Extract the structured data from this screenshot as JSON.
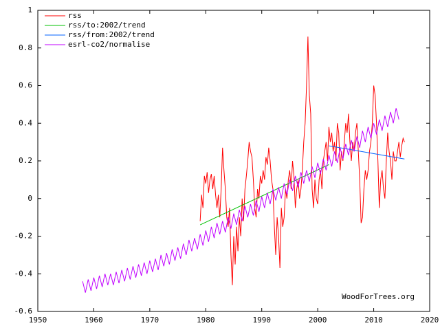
{
  "chart_data": {
    "type": "line",
    "annotation": "WoodForTrees.org",
    "xlim": [
      1950,
      2020
    ],
    "xticks": [
      1950,
      1960,
      1970,
      1980,
      1990,
      2000,
      2010,
      2020
    ],
    "ylim": [
      -0.6,
      1
    ],
    "yticks": [
      -0.6,
      -0.4,
      -0.2,
      0,
      0.2,
      0.4,
      0.6,
      0.8,
      1
    ],
    "grid": false,
    "legend": "top-left",
    "series": [
      {
        "name": "rss",
        "color": "#ff0000",
        "x": [
          1979,
          1979.25,
          1979.5,
          1979.75,
          1980,
          1980.25,
          1980.5,
          1980.75,
          1981,
          1981.25,
          1981.5,
          1981.75,
          1982,
          1982.25,
          1982.5,
          1982.75,
          1983,
          1983.25,
          1983.5,
          1983.75,
          1984,
          1984.25,
          1984.5,
          1984.75,
          1985,
          1985.25,
          1985.5,
          1985.75,
          1986,
          1986.25,
          1986.5,
          1986.75,
          1987,
          1987.25,
          1987.5,
          1987.75,
          1988,
          1988.25,
          1988.5,
          1988.75,
          1989,
          1989.25,
          1989.5,
          1989.75,
          1990,
          1990.25,
          1990.5,
          1990.75,
          1991,
          1991.25,
          1991.5,
          1991.75,
          1992,
          1992.25,
          1992.5,
          1992.75,
          1993,
          1993.25,
          1993.5,
          1993.75,
          1994,
          1994.25,
          1994.5,
          1994.75,
          1995,
          1995.25,
          1995.5,
          1995.75,
          1996,
          1996.25,
          1996.5,
          1996.75,
          1997,
          1997.25,
          1997.5,
          1997.75,
          1998,
          1998.25,
          1998.5,
          1998.75,
          1999,
          1999.25,
          1999.5,
          1999.75,
          2000,
          2000.25,
          2000.5,
          2000.75,
          2001,
          2001.25,
          2001.5,
          2001.75,
          2002,
          2002.25,
          2002.5,
          2002.75,
          2003,
          2003.25,
          2003.5,
          2003.75,
          2004,
          2004.25,
          2004.5,
          2004.75,
          2005,
          2005.25,
          2005.5,
          2005.75,
          2006,
          2006.25,
          2006.5,
          2006.75,
          2007,
          2007.25,
          2007.5,
          2007.75,
          2008,
          2008.25,
          2008.5,
          2008.75,
          2009,
          2009.25,
          2009.5,
          2009.75,
          2010,
          2010.25,
          2010.5,
          2010.75,
          2011,
          2011.25,
          2011.5,
          2011.75,
          2012,
          2012.25,
          2012.5,
          2012.75,
          2013,
          2013.25,
          2013.5,
          2013.75,
          2014,
          2014.25,
          2014.5,
          2014.75,
          2015,
          2015.25,
          2015.5
        ],
        "values": [
          -0.12,
          0.02,
          -0.05,
          0.12,
          0.08,
          0.14,
          0.03,
          0.1,
          0.13,
          0.05,
          0.12,
          0.02,
          -0.05,
          0.02,
          -0.1,
          0.05,
          0.27,
          0.15,
          0.05,
          -0.1,
          -0.15,
          -0.05,
          -0.3,
          -0.46,
          -0.2,
          -0.35,
          -0.15,
          -0.28,
          -0.1,
          -0.2,
          0.0,
          -0.12,
          0.05,
          0.12,
          0.2,
          0.3,
          0.25,
          0.22,
          0.1,
          -0.05,
          -0.1,
          0.05,
          0.0,
          0.12,
          0.08,
          0.15,
          0.1,
          0.22,
          0.18,
          0.27,
          0.2,
          0.1,
          0.05,
          -0.15,
          -0.3,
          -0.1,
          -0.2,
          -0.37,
          -0.05,
          -0.15,
          -0.1,
          0.05,
          0.0,
          0.1,
          0.15,
          0.05,
          0.2,
          0.12,
          -0.05,
          0.05,
          0.1,
          0.0,
          0.05,
          0.15,
          0.3,
          0.4,
          0.6,
          0.86,
          0.55,
          0.45,
          0.05,
          -0.05,
          0.1,
          0.0,
          -0.03,
          0.1,
          0.15,
          0.05,
          0.2,
          0.25,
          0.3,
          0.2,
          0.38,
          0.3,
          0.35,
          0.25,
          0.3,
          0.2,
          0.4,
          0.35,
          0.15,
          0.25,
          0.2,
          0.3,
          0.4,
          0.35,
          0.45,
          0.3,
          0.2,
          0.3,
          0.25,
          0.35,
          0.4,
          0.25,
          0.1,
          -0.13,
          -0.1,
          0.05,
          0.15,
          0.1,
          0.15,
          0.25,
          0.3,
          0.4,
          0.6,
          0.55,
          0.4,
          0.2,
          -0.05,
          0.1,
          0.15,
          0.05,
          0.0,
          0.2,
          0.35,
          0.25,
          0.2,
          0.1,
          0.25,
          0.2,
          0.2,
          0.25,
          0.3,
          0.22,
          0.28,
          0.32,
          0.3
        ]
      },
      {
        "name": "rss/to:2002/trend",
        "color": "#00c000",
        "x": [
          1979,
          2002
        ],
        "values": [
          -0.14,
          0.18
        ]
      },
      {
        "name": "rss/from:2002/trend",
        "color": "#0060ff",
        "x": [
          2002,
          2015.5
        ],
        "values": [
          0.28,
          0.21
        ]
      },
      {
        "name": "esrl-co2/normalise",
        "color": "#c000ff",
        "x": [
          1958,
          1958.5,
          1959,
          1959.5,
          1960,
          1960.5,
          1961,
          1961.5,
          1962,
          1962.5,
          1963,
          1963.5,
          1964,
          1964.5,
          1965,
          1965.5,
          1966,
          1966.5,
          1967,
          1967.5,
          1968,
          1968.5,
          1969,
          1969.5,
          1970,
          1970.5,
          1971,
          1971.5,
          1972,
          1972.5,
          1973,
          1973.5,
          1974,
          1974.5,
          1975,
          1975.5,
          1976,
          1976.5,
          1977,
          1977.5,
          1978,
          1978.5,
          1979,
          1979.5,
          1980,
          1980.5,
          1981,
          1981.5,
          1982,
          1982.5,
          1983,
          1983.5,
          1984,
          1984.5,
          1985,
          1985.5,
          1986,
          1986.5,
          1987,
          1987.5,
          1988,
          1988.5,
          1989,
          1989.5,
          1990,
          1990.5,
          1991,
          1991.5,
          1992,
          1992.5,
          1993,
          1993.5,
          1994,
          1994.5,
          1995,
          1995.5,
          1996,
          1996.5,
          1997,
          1997.5,
          1998,
          1998.5,
          1999,
          1999.5,
          2000,
          2000.5,
          2001,
          2001.5,
          2002,
          2002.5,
          2003,
          2003.5,
          2004,
          2004.5,
          2005,
          2005.5,
          2006,
          2006.5,
          2007,
          2007.5,
          2008,
          2008.5,
          2009,
          2009.5,
          2010,
          2010.5,
          2011,
          2011.5,
          2012,
          2012.5,
          2013,
          2013.5,
          2014,
          2014.5
        ],
        "values": [
          -0.44,
          -0.5,
          -0.43,
          -0.49,
          -0.42,
          -0.48,
          -0.41,
          -0.47,
          -0.4,
          -0.46,
          -0.4,
          -0.46,
          -0.39,
          -0.45,
          -0.38,
          -0.44,
          -0.37,
          -0.43,
          -0.36,
          -0.42,
          -0.35,
          -0.41,
          -0.34,
          -0.4,
          -0.33,
          -0.39,
          -0.32,
          -0.38,
          -0.3,
          -0.36,
          -0.29,
          -0.35,
          -0.27,
          -0.33,
          -0.26,
          -0.32,
          -0.24,
          -0.3,
          -0.22,
          -0.28,
          -0.21,
          -0.27,
          -0.19,
          -0.25,
          -0.17,
          -0.23,
          -0.15,
          -0.21,
          -0.13,
          -0.19,
          -0.12,
          -0.18,
          -0.1,
          -0.16,
          -0.08,
          -0.14,
          -0.06,
          -0.12,
          -0.04,
          -0.1,
          -0.03,
          -0.09,
          -0.01,
          -0.07,
          0.01,
          -0.05,
          0.03,
          -0.03,
          0.05,
          -0.01,
          0.06,
          0.0,
          0.08,
          0.02,
          0.1,
          0.04,
          0.12,
          0.06,
          0.14,
          0.08,
          0.15,
          0.09,
          0.17,
          0.11,
          0.19,
          0.13,
          0.21,
          0.15,
          0.23,
          0.17,
          0.25,
          0.19,
          0.27,
          0.21,
          0.29,
          0.23,
          0.31,
          0.25,
          0.33,
          0.27,
          0.36,
          0.3,
          0.38,
          0.32,
          0.4,
          0.34,
          0.42,
          0.36,
          0.44,
          0.38,
          0.46,
          0.4,
          0.48,
          0.42
        ]
      }
    ]
  }
}
